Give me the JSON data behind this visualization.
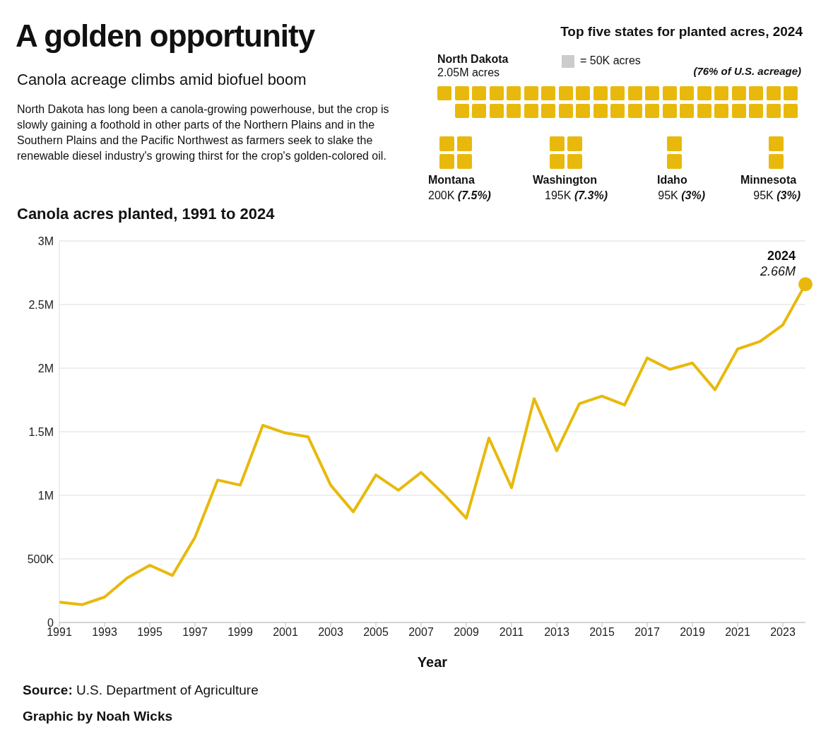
{
  "chart_data": [
    {
      "type": "other",
      "title": "A golden opportunity",
      "subtitle": "Canola acreage climbs amid biofuel boom",
      "annotations": [
        "North Dakota has long been a canola-growing powerhouse, but the crop is slowly gaining a foothold in other parts of the Northern Plains and in the Southern Plains and the Pacific Northwest as farmers seek to slake the renewable diesel industry's growing thirst for the crop's golden-colored oil.",
        "Source: U.S. Department of Agriculture",
        "Graphic by Noah Wicks"
      ]
    },
    {
      "type": "other",
      "title": "Top five states for planted acres, 2024",
      "categories": [
        "North Dakota",
        "Montana",
        "Washington",
        "Idaho",
        "Minnesota"
      ],
      "values": [
        2050000,
        200000,
        195000,
        95000,
        95000
      ],
      "value_labels": [
        "2.05M acres",
        "200K (7.5%)",
        "195K (7.3%)",
        "95K (3%)",
        "95K (3%)"
      ],
      "color": "#e8b90c",
      "annotations": [
        "= 50K acres",
        "(76% of U.S. acreage)"
      ]
    },
    {
      "type": "line",
      "title": "Canola acres planted, 1991 to 2024",
      "xlabel": "Year",
      "x": [
        1991,
        1992,
        1993,
        1994,
        1995,
        1996,
        1997,
        1998,
        1999,
        2000,
        2001,
        2002,
        2003,
        2004,
        2005,
        2006,
        2007,
        2008,
        2009,
        2010,
        2011,
        2012,
        2013,
        2014,
        2015,
        2016,
        2017,
        2018,
        2019,
        2020,
        2021,
        2022,
        2023,
        2024
      ],
      "series": [
        {
          "color": "#e8b90c",
          "values": [
            160000,
            140000,
            200000,
            350000,
            450000,
            370000,
            670000,
            1120000,
            1080000,
            1550000,
            1490000,
            1460000,
            1080000,
            870000,
            1160000,
            1040000,
            1180000,
            1010000,
            820000,
            1450000,
            1060000,
            1760000,
            1350000,
            1720000,
            1780000,
            1710000,
            2080000,
            1990000,
            2040000,
            1830000,
            2150000,
            2210000,
            2340000,
            2660000
          ]
        }
      ],
      "xlim": [
        1991,
        2024
      ],
      "xticks": [
        1991,
        1993,
        1995,
        1997,
        1999,
        2001,
        2003,
        2005,
        2007,
        2009,
        2011,
        2013,
        2015,
        2017,
        2019,
        2021,
        2023
      ],
      "ylim": [
        0,
        3000000
      ],
      "yticks": [
        0,
        {
          "value": 500000,
          "label": "500K"
        },
        {
          "value": 1000000,
          "label": "1M"
        },
        {
          "value": 1500000,
          "label": "1.5M"
        },
        {
          "value": 2000000,
          "label": "2M"
        },
        {
          "value": 2500000,
          "label": "2.5M"
        },
        {
          "value": 3000000,
          "label": "3M"
        }
      ],
      "grid": "y",
      "marker": "none",
      "line_style": "solid",
      "annotations": [
        {
          "text": "2024",
          "x": 2024,
          "y": 2660000
        },
        {
          "text": "2.66M",
          "x": 2024,
          "y": 2660000
        }
      ]
    }
  ]
}
